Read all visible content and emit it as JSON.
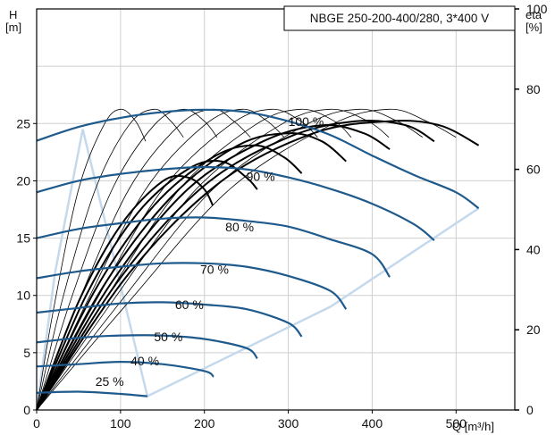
{
  "chart_data": {
    "type": "line",
    "title": "NBGE 250-200-400/280, 3*400 V",
    "y_left": {
      "label": "H",
      "unit": "[m]",
      "range": [
        0,
        35
      ],
      "ticks": [
        0,
        5,
        10,
        15,
        20,
        25
      ]
    },
    "y_right": {
      "label": "eta",
      "unit": "[%]",
      "range": [
        0,
        100
      ],
      "ticks": [
        0,
        20,
        40,
        60,
        80,
        100
      ]
    },
    "x": {
      "label": "Q [m³/h]",
      "range": [
        0,
        570
      ],
      "ticks": [
        0,
        100,
        200,
        300,
        400,
        500
      ]
    },
    "grid": true,
    "legend": "top-right",
    "colors": {
      "speed_curve": "#1f5a8c",
      "efficiency": "#000000",
      "envelope": "#c5d9ec"
    },
    "speed_curves": [
      {
        "label": "100 %",
        "points": [
          [
            0,
            23.5
          ],
          [
            50,
            24.7
          ],
          [
            100,
            25.5
          ],
          [
            150,
            26.0
          ],
          [
            200,
            26.2
          ],
          [
            250,
            26.0
          ],
          [
            300,
            25.2
          ],
          [
            350,
            24.0
          ],
          [
            400,
            22.2
          ],
          [
            450,
            20.5
          ],
          [
            500,
            19.0
          ],
          [
            527,
            17.6
          ]
        ]
      },
      {
        "label": "90 %",
        "points": [
          [
            0,
            19.0
          ],
          [
            50,
            20.0
          ],
          [
            100,
            20.6
          ],
          [
            150,
            21.0
          ],
          [
            200,
            21.2
          ],
          [
            250,
            21.0
          ],
          [
            300,
            20.3
          ],
          [
            350,
            19.3
          ],
          [
            400,
            18.0
          ],
          [
            450,
            16.2
          ],
          [
            474,
            14.8
          ]
        ]
      },
      {
        "label": "80 %",
        "points": [
          [
            0,
            15.0
          ],
          [
            50,
            15.8
          ],
          [
            100,
            16.3
          ],
          [
            150,
            16.7
          ],
          [
            200,
            16.8
          ],
          [
            250,
            16.5
          ],
          [
            300,
            16.0
          ],
          [
            350,
            14.9
          ],
          [
            400,
            13.6
          ],
          [
            421,
            11.6
          ]
        ]
      },
      {
        "label": "70 %",
        "points": [
          [
            0,
            11.5
          ],
          [
            50,
            12.1
          ],
          [
            100,
            12.5
          ],
          [
            150,
            12.8
          ],
          [
            200,
            12.8
          ],
          [
            250,
            12.5
          ],
          [
            300,
            11.7
          ],
          [
            350,
            10.4
          ],
          [
            369,
            8.8
          ]
        ]
      },
      {
        "label": "60 %",
        "points": [
          [
            0,
            8.5
          ],
          [
            50,
            8.9
          ],
          [
            100,
            9.3
          ],
          [
            150,
            9.4
          ],
          [
            200,
            9.2
          ],
          [
            250,
            8.8
          ],
          [
            300,
            7.6
          ],
          [
            316,
            6.4
          ]
        ]
      },
      {
        "label": "50 %",
        "points": [
          [
            0,
            5.9
          ],
          [
            50,
            6.3
          ],
          [
            100,
            6.5
          ],
          [
            150,
            6.5
          ],
          [
            200,
            6.2
          ],
          [
            250,
            5.4
          ],
          [
            263,
            4.5
          ]
        ]
      },
      {
        "label": "40 %",
        "points": [
          [
            0,
            3.8
          ],
          [
            50,
            4.0
          ],
          [
            100,
            4.2
          ],
          [
            150,
            4.0
          ],
          [
            200,
            3.4
          ],
          [
            211,
            2.9
          ]
        ]
      },
      {
        "label": "25 %",
        "points": [
          [
            0,
            1.5
          ],
          [
            50,
            1.6
          ],
          [
            100,
            1.4
          ],
          [
            132,
            1.2
          ]
        ]
      }
    ],
    "efficiency_curves_thin": [
      {
        "points": [
          [
            0,
            0
          ],
          [
            20,
            25
          ],
          [
            50,
            55
          ],
          [
            80,
            71
          ],
          [
            100,
            75
          ],
          [
            118,
            72
          ],
          [
            130,
            67
          ]
        ]
      },
      {
        "points": [
          [
            0,
            0
          ],
          [
            30,
            27
          ],
          [
            70,
            55
          ],
          [
            110,
            71
          ],
          [
            140,
            75
          ],
          [
            160,
            72
          ],
          [
            175,
            68
          ]
        ]
      },
      {
        "points": [
          [
            0,
            0
          ],
          [
            40,
            27
          ],
          [
            90,
            55
          ],
          [
            140,
            71
          ],
          [
            175,
            75
          ],
          [
            200,
            72
          ],
          [
            215,
            68
          ]
        ]
      },
      {
        "points": [
          [
            0,
            0
          ],
          [
            50,
            27
          ],
          [
            110,
            55
          ],
          [
            170,
            71
          ],
          [
            210,
            75
          ],
          [
            235,
            72
          ],
          [
            255,
            68
          ]
        ]
      },
      {
        "points": [
          [
            0,
            0
          ],
          [
            60,
            27
          ],
          [
            130,
            55
          ],
          [
            200,
            71
          ],
          [
            245,
            75
          ],
          [
            275,
            72
          ],
          [
            295,
            68
          ]
        ]
      },
      {
        "points": [
          [
            0,
            0
          ],
          [
            70,
            27
          ],
          [
            150,
            55
          ],
          [
            230,
            71
          ],
          [
            280,
            75
          ],
          [
            315,
            72
          ],
          [
            335,
            68
          ]
        ]
      },
      {
        "points": [
          [
            0,
            0
          ],
          [
            80,
            27
          ],
          [
            170,
            55
          ],
          [
            260,
            71
          ],
          [
            315,
            75
          ],
          [
            355,
            72
          ],
          [
            375,
            68
          ]
        ]
      },
      {
        "points": [
          [
            0,
            0
          ],
          [
            90,
            27
          ],
          [
            190,
            55
          ],
          [
            290,
            71
          ],
          [
            350,
            75
          ],
          [
            395,
            72
          ],
          [
            420,
            68
          ]
        ]
      },
      {
        "points": [
          [
            0,
            0
          ],
          [
            100,
            27
          ],
          [
            210,
            55
          ],
          [
            320,
            71
          ],
          [
            385,
            75
          ],
          [
            430,
            72
          ],
          [
            460,
            68
          ]
        ]
      },
      {
        "points": [
          [
            0,
            0
          ],
          [
            110,
            27
          ],
          [
            230,
            55
          ],
          [
            350,
            71
          ],
          [
            420,
            75
          ],
          [
            465,
            72
          ],
          [
            500,
            68
          ]
        ]
      }
    ],
    "efficiency_curves_bold": [
      {
        "points": [
          [
            0,
            0
          ],
          [
            50,
            27
          ],
          [
            100,
            46
          ],
          [
            150,
            57
          ],
          [
            180,
            58
          ],
          [
            200,
            55
          ],
          [
            210,
            51
          ]
        ]
      },
      {
        "points": [
          [
            0,
            0
          ],
          [
            60,
            29
          ],
          [
            120,
            49
          ],
          [
            180,
            60
          ],
          [
            220,
            62
          ],
          [
            250,
            58
          ],
          [
            263,
            55
          ]
        ]
      },
      {
        "points": [
          [
            0,
            0
          ],
          [
            70,
            30
          ],
          [
            140,
            51
          ],
          [
            210,
            63
          ],
          [
            260,
            66
          ],
          [
            295,
            63
          ],
          [
            316,
            59
          ]
        ]
      },
      {
        "points": [
          [
            0,
            0
          ],
          [
            80,
            31
          ],
          [
            160,
            53
          ],
          [
            240,
            66
          ],
          [
            300,
            69
          ],
          [
            340,
            67
          ],
          [
            369,
            62
          ]
        ]
      },
      {
        "points": [
          [
            0,
            0
          ],
          [
            90,
            32
          ],
          [
            180,
            55
          ],
          [
            270,
            67
          ],
          [
            340,
            71
          ],
          [
            390,
            69
          ],
          [
            421,
            65
          ]
        ]
      },
      {
        "points": [
          [
            0,
            0
          ],
          [
            100,
            33
          ],
          [
            200,
            56
          ],
          [
            300,
            68
          ],
          [
            380,
            72
          ],
          [
            440,
            71
          ],
          [
            474,
            67
          ]
        ]
      },
      {
        "points": [
          [
            0,
            0
          ],
          [
            110,
            34
          ],
          [
            220,
            57
          ],
          [
            330,
            69
          ],
          [
            420,
            72
          ],
          [
            480,
            71
          ],
          [
            527,
            66
          ]
        ]
      }
    ],
    "envelope": [
      [
        0,
        0
      ],
      [
        22,
        12.0
      ],
      [
        55,
        24.5
      ],
      [
        132,
        1.2
      ],
      [
        350,
        9.0
      ],
      [
        527,
        17.6
      ]
    ]
  }
}
